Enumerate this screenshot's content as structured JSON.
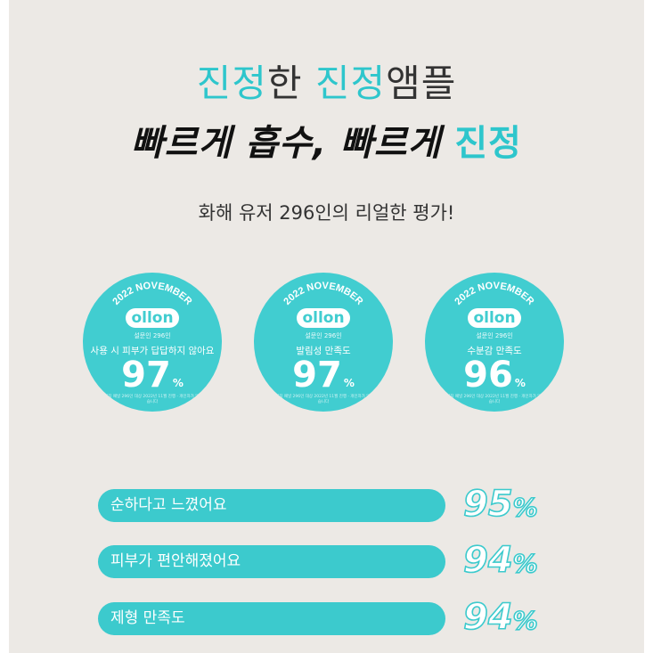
{
  "headline": {
    "part1": "진정",
    "part2": "한 ",
    "part3": "진정",
    "part4": "앰플"
  },
  "headline2": {
    "part1": "빠르게 흡수, 빠르게 ",
    "part2": "진정"
  },
  "subtitle": "화해 유저 296인의 리얼한 평가!",
  "badges": [
    {
      "arc_text": "2022 NOVEMBER",
      "logo": "ollon",
      "sample": "설문인 296인",
      "label": "사용 시 피부가 답답하지 않아요",
      "value": "97",
      "unit": "%",
      "foot": "화해 리서치 패널 296인 대상 2022년 11월 진행 · 개인차가 있을 수 있습니다"
    },
    {
      "arc_text": "2022 NOVEMBER",
      "logo": "ollon",
      "sample": "설문인 296인",
      "label": "발림성 만족도",
      "value": "97",
      "unit": "%",
      "foot": "화해 리서치 패널 296인 대상 2022년 11월 진행 · 개인차가 있을 수 있습니다"
    },
    {
      "arc_text": "2022 NOVEMBER",
      "logo": "ollon",
      "sample": "설문인 296인",
      "label": "수분감 만족도",
      "value": "96",
      "unit": "%",
      "foot": "화해 리서치 패널 296인 대상 2022년 11월 진행 · 개인차가 있을 수 있습니다"
    }
  ],
  "bars": [
    {
      "label": "순하다고 느꼈어요",
      "value": "95",
      "unit": "%"
    },
    {
      "label": "피부가 편안해졌어요",
      "value": "94",
      "unit": "%"
    },
    {
      "label": "제형 만족도",
      "value": "94",
      "unit": "%"
    }
  ],
  "colors": {
    "accent": "#2ec6cc",
    "badge": "#41cdd0",
    "background": "#ece9e5"
  }
}
